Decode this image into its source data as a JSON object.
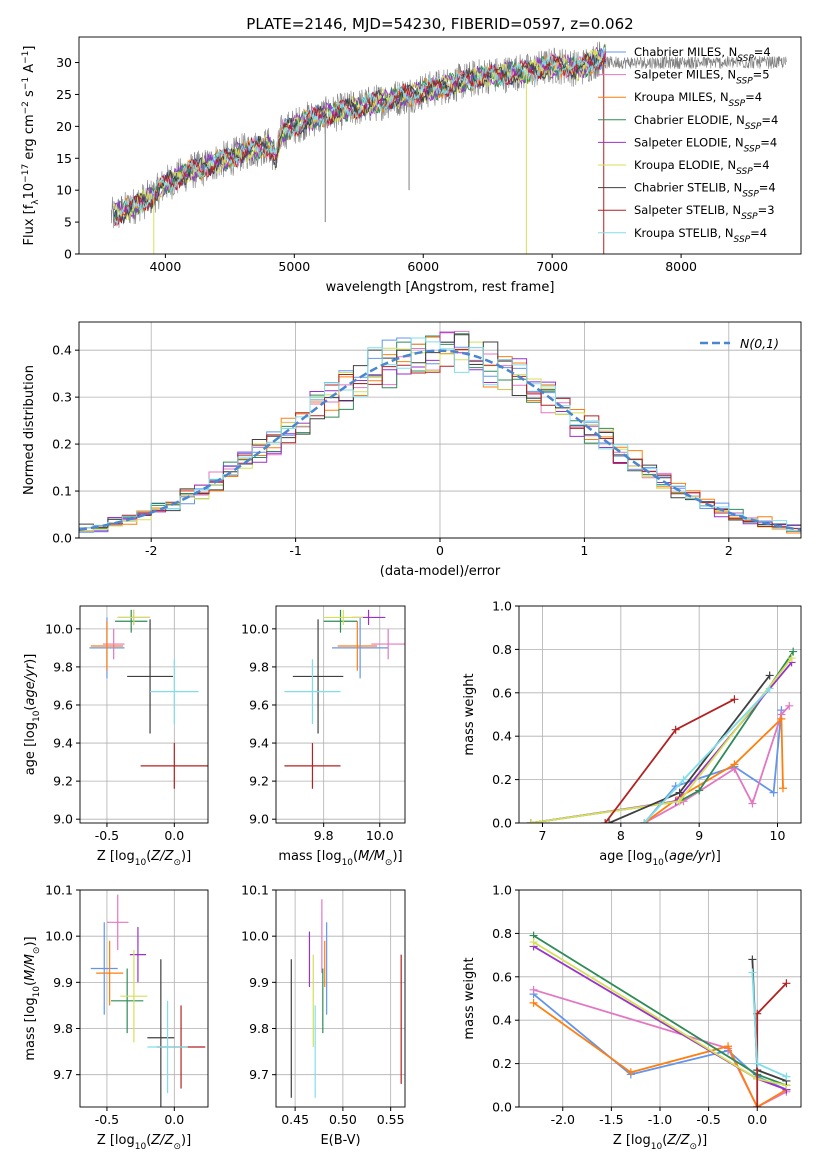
{
  "figure_title": "PLATE=2146, MJD=54230, FIBERID=0597, z=0.062",
  "models": [
    {
      "label": "Chabrier MILES, N_SSP=4",
      "lib": "MILES",
      "imf": "Chabrier",
      "nssp": "4",
      "color": "#6495ed"
    },
    {
      "label": "Salpeter MILES, N_SSP=5",
      "lib": "MILES",
      "imf": "Salpeter",
      "nssp": "5",
      "color": "#e377c2"
    },
    {
      "label": "Kroupa MILES, N_SSP=4",
      "lib": "MILES",
      "imf": "Kroupa",
      "nssp": "4",
      "color": "#ff7f0e"
    },
    {
      "label": "Chabrier ELODIE, N_SSP=4",
      "lib": "ELODIE",
      "imf": "Chabrier",
      "nssp": "4",
      "color": "#2e8b57"
    },
    {
      "label": "Salpeter ELODIE, N_SSP=4",
      "lib": "ELODIE",
      "imf": "Salpeter",
      "nssp": "4",
      "color": "#9932cc"
    },
    {
      "label": "Kroupa ELODIE, N_SSP=4",
      "lib": "ELODIE",
      "imf": "Kroupa",
      "nssp": "4",
      "color": "#d4e157"
    },
    {
      "label": "Chabrier STELIB, N_SSP=4",
      "lib": "STELIB",
      "imf": "Chabrier",
      "nssp": "4",
      "color": "#404040"
    },
    {
      "label": "Salpeter STELIB, N_SSP=3",
      "lib": "STELIB",
      "imf": "Salpeter",
      "nssp": "3",
      "color": "#b22222"
    },
    {
      "label": "Kroupa STELIB, N_SSP=4",
      "lib": "STELIB",
      "imf": "Kroupa",
      "nssp": "4",
      "color": "#80deea"
    }
  ],
  "chart_data": [
    {
      "id": "spectrum",
      "type": "line",
      "title": "PLATE=2146, MJD=54230, FIBERID=0597, z=0.062",
      "xlabel": "wavelength [Angstrom, rest frame]",
      "ylabel": "Flux [f_λ 10^-17 erg cm^-2 s^-1 A^-1]",
      "xlim": [
        3330,
        8930
      ],
      "ylim": [
        0,
        34
      ],
      "xticks": [
        4000,
        5000,
        6000,
        7000,
        8000
      ],
      "yticks": [
        0,
        5,
        10,
        15,
        20,
        25,
        30
      ],
      "grid": false,
      "legend": "right",
      "continuum_nodes": {
        "x": [
          3600,
          3700,
          3800,
          3900,
          4000,
          4100,
          4200,
          4300,
          4400,
          4500,
          4600,
          4700,
          4800,
          4860,
          4900,
          5000,
          5100,
          5200,
          5300,
          5400,
          5500,
          5600,
          5700,
          5800,
          5900,
          6000,
          6100,
          6200,
          6300,
          6400,
          6500,
          6600,
          6700,
          6800,
          6900,
          7000,
          7100,
          7200,
          7300,
          7400
        ],
        "y": [
          6,
          7,
          8,
          9,
          11,
          12,
          13,
          13.5,
          14.5,
          15,
          16,
          16.5,
          17,
          15,
          19,
          20,
          21,
          21.5,
          22,
          22.5,
          23,
          23.5,
          24,
          24.5,
          25,
          25.5,
          26,
          26.5,
          27,
          27.5,
          28,
          28,
          28.5,
          28.5,
          29,
          29.5,
          29.5,
          29,
          30,
          31
        ]
      },
      "spikes": [
        {
          "x": 3910,
          "y": -1
        },
        {
          "x": 5240,
          "y": 5
        },
        {
          "x": 5890,
          "y": 10
        },
        {
          "x": 6800,
          "y": -1
        },
        {
          "x": 7400,
          "y": -1
        }
      ]
    },
    {
      "id": "residuals",
      "type": "line",
      "xlabel": "(data-model)/error",
      "ylabel": "Normed distribution",
      "xlim": [
        -2.5,
        2.5
      ],
      "ylim": [
        0,
        0.46
      ],
      "xticks": [
        -2,
        -1,
        0,
        1,
        2
      ],
      "yticks": [
        0,
        0.1,
        0.2,
        0.3,
        0.4
      ],
      "grid": true,
      "legend": "top-right",
      "legend_label": "N(0,1)",
      "reference": {
        "name": "N(0,1)",
        "mean": 0,
        "sigma": 1,
        "color": "#4a86d0"
      },
      "bin_width": 0.1
    },
    {
      "id": "age_vs_Z",
      "type": "scatter",
      "xlabel": "Z [log10(Z/Z_sun)]",
      "ylabel": "age [log10(age/yr)]",
      "xlim": [
        -0.7,
        0.25
      ],
      "ylim": [
        8.98,
        10.12
      ],
      "xticks": [
        -0.5,
        0.0
      ],
      "yticks": [
        9.0,
        9.2,
        9.4,
        9.6,
        9.8,
        10.0
      ],
      "grid": true,
      "points": [
        {
          "model": 0,
          "x": -0.5,
          "xerr": 0.13,
          "y": 9.9,
          "yerr": 0.16
        },
        {
          "model": 1,
          "x": -0.45,
          "xerr": 0.08,
          "y": 9.92,
          "yerr": 0.08
        },
        {
          "model": 2,
          "x": -0.5,
          "xerr": 0.12,
          "y": 9.91,
          "yerr": 0.13
        },
        {
          "model": 3,
          "x": -0.32,
          "xerr": 0.12,
          "y": 10.04,
          "yerr": 0.06
        },
        {
          "model": 4,
          "x": -0.3,
          "xerr": 0.12,
          "y": 10.06,
          "yerr": 0.04
        },
        {
          "model": 5,
          "x": -0.3,
          "xerr": 0.12,
          "y": 10.06,
          "yerr": 0.04
        },
        {
          "model": 6,
          "x": -0.18,
          "xerr": 0.17,
          "y": 9.75,
          "yerr": 0.3
        },
        {
          "model": 7,
          "x": 0.0,
          "xerr": 0.25,
          "y": 9.28,
          "yerr": 0.12
        },
        {
          "model": 8,
          "x": 0.0,
          "xerr": 0.18,
          "y": 9.67,
          "yerr": 0.17
        }
      ]
    },
    {
      "id": "age_vs_mass",
      "type": "scatter",
      "xlabel": "mass [log10(M/M_sun)]",
      "ylabel": "",
      "xlim": [
        9.63,
        10.09
      ],
      "ylim": [
        8.98,
        10.12
      ],
      "xticks": [
        9.8,
        10.0
      ],
      "yticks": [
        9.0,
        9.2,
        9.4,
        9.6,
        9.8,
        10.0
      ],
      "grid": true,
      "points": [
        {
          "model": 0,
          "x": 9.93,
          "xerr": 0.1,
          "y": 9.9,
          "yerr": 0.16
        },
        {
          "model": 1,
          "x": 10.03,
          "xerr": 0.06,
          "y": 9.92,
          "yerr": 0.08
        },
        {
          "model": 2,
          "x": 9.92,
          "xerr": 0.07,
          "y": 9.91,
          "yerr": 0.13
        },
        {
          "model": 3,
          "x": 9.86,
          "xerr": 0.06,
          "y": 10.04,
          "yerr": 0.06
        },
        {
          "model": 4,
          "x": 9.96,
          "xerr": 0.06,
          "y": 10.06,
          "yerr": 0.04
        },
        {
          "model": 5,
          "x": 9.87,
          "xerr": 0.07,
          "y": 10.06,
          "yerr": 0.04
        },
        {
          "model": 6,
          "x": 9.78,
          "xerr": 0.09,
          "y": 9.75,
          "yerr": 0.3
        },
        {
          "model": 7,
          "x": 9.76,
          "xerr": 0.1,
          "y": 9.28,
          "yerr": 0.12
        },
        {
          "model": 8,
          "x": 9.76,
          "xerr": 0.1,
          "y": 9.67,
          "yerr": 0.17
        }
      ]
    },
    {
      "id": "weight_vs_age",
      "type": "line",
      "xlabel": "age [log10(age/yr)]",
      "ylabel": "mass weight",
      "xlim": [
        6.7,
        10.3
      ],
      "ylim": [
        0,
        1.0
      ],
      "xticks": [
        7,
        8,
        9,
        10
      ],
      "yticks": [
        0,
        0.2,
        0.4,
        0.6,
        0.8,
        1.0
      ],
      "grid": true,
      "series": [
        {
          "model": 0,
          "x": [
            8.3,
            8.7,
            9.45,
            9.95,
            10.05
          ],
          "y": [
            0.0,
            0.17,
            0.26,
            0.14,
            0.52
          ]
        },
        {
          "model": 1,
          "x": [
            8.3,
            8.8,
            9.45,
            9.68,
            10.05,
            10.15
          ],
          "y": [
            0.0,
            0.1,
            0.25,
            0.09,
            0.5,
            0.54
          ]
        },
        {
          "model": 2,
          "x": [
            8.3,
            8.75,
            9.45,
            10.05,
            10.07
          ],
          "y": [
            0.0,
            0.12,
            0.27,
            0.48,
            0.16
          ]
        },
        {
          "model": 3,
          "x": [
            6.85,
            8.75,
            9.0,
            10.2
          ],
          "y": [
            0.0,
            0.1,
            0.15,
            0.79
          ]
        },
        {
          "model": 4,
          "x": [
            6.85,
            8.7,
            10.18
          ],
          "y": [
            0.0,
            0.1,
            0.74
          ]
        },
        {
          "model": 5,
          "x": [
            6.85,
            8.75,
            10.18
          ],
          "y": [
            0.0,
            0.1,
            0.76
          ]
        },
        {
          "model": 6,
          "x": [
            7.85,
            8.75,
            9.9
          ],
          "y": [
            0.0,
            0.14,
            0.68
          ]
        },
        {
          "model": 7,
          "x": [
            7.8,
            8.7,
            9.45
          ],
          "y": [
            0.0,
            0.43,
            0.57
          ]
        },
        {
          "model": 8,
          "x": [
            8.3,
            8.8,
            9.9
          ],
          "y": [
            0.0,
            0.2,
            0.62
          ]
        }
      ]
    },
    {
      "id": "mass_vs_Z",
      "type": "scatter",
      "xlabel": "Z [log10(Z/Z_sun)]",
      "ylabel": "mass [log10(M/M_sun)]",
      "xlim": [
        -0.7,
        0.25
      ],
      "ylim": [
        9.63,
        10.1
      ],
      "xticks": [
        -0.5,
        0.0
      ],
      "yticks": [
        9.7,
        9.8,
        9.9,
        10.0,
        10.1
      ],
      "grid": true,
      "points": [
        {
          "model": 0,
          "x": -0.52,
          "xerr": 0.1,
          "y": 9.93,
          "yerr": 0.1
        },
        {
          "model": 1,
          "x": -0.42,
          "xerr": 0.08,
          "y": 10.03,
          "yerr": 0.06
        },
        {
          "model": 2,
          "x": -0.48,
          "xerr": 0.1,
          "y": 9.92,
          "yerr": 0.07
        },
        {
          "model": 3,
          "x": -0.35,
          "xerr": 0.12,
          "y": 9.86,
          "yerr": 0.07
        },
        {
          "model": 4,
          "x": -0.27,
          "xerr": 0.06,
          "y": 9.96,
          "yerr": 0.06
        },
        {
          "model": 5,
          "x": -0.3,
          "xerr": 0.1,
          "y": 9.87,
          "yerr": 0.1
        },
        {
          "model": 6,
          "x": -0.1,
          "xerr": 0.1,
          "y": 9.78,
          "yerr": 0.17
        },
        {
          "model": 7,
          "x": 0.05,
          "xerr": 0.18,
          "y": 9.76,
          "yerr": 0.09
        },
        {
          "model": 8,
          "x": -0.05,
          "xerr": 0.15,
          "y": 9.76,
          "yerr": 0.1
        }
      ]
    },
    {
      "id": "mass_vs_ebv",
      "type": "scatter",
      "xlabel": "E(B-V)",
      "ylabel": "",
      "xlim": [
        0.43,
        0.565
      ],
      "ylim": [
        9.63,
        10.1
      ],
      "xticks": [
        0.45,
        0.5,
        0.55
      ],
      "yticks": [
        9.7,
        9.8,
        9.9,
        10.0,
        10.1
      ],
      "grid": true,
      "points": [
        {
          "model": 0,
          "x": 0.483,
          "y": 9.93,
          "yerr": 0.1
        },
        {
          "model": 1,
          "x": 0.478,
          "y": 10.0,
          "yerr": 0.08
        },
        {
          "model": 2,
          "x": 0.481,
          "y": 9.94,
          "yerr": 0.05
        },
        {
          "model": 3,
          "x": 0.479,
          "y": 9.86,
          "yerr": 0.07
        },
        {
          "model": 4,
          "x": 0.465,
          "y": 9.95,
          "yerr": 0.06
        },
        {
          "model": 5,
          "x": 0.469,
          "y": 9.86,
          "yerr": 0.1
        },
        {
          "model": 6,
          "x": 0.446,
          "y": 9.8,
          "yerr": 0.15
        },
        {
          "model": 7,
          "x": 0.561,
          "y": 9.82,
          "yerr": 0.14
        },
        {
          "model": 8,
          "x": 0.471,
          "y": 9.75,
          "yerr": 0.1
        }
      ]
    },
    {
      "id": "weight_vs_Z",
      "type": "line",
      "xlabel": "Z [log10(Z/Z_sun)]",
      "ylabel": "mass weight",
      "xlim": [
        -2.45,
        0.45
      ],
      "ylim": [
        0,
        1.0
      ],
      "xticks": [
        -2.0,
        -1.5,
        -1.0,
        -0.5,
        0.0
      ],
      "yticks": [
        0,
        0.2,
        0.4,
        0.6,
        0.8,
        1.0
      ],
      "grid": true,
      "series": [
        {
          "model": 0,
          "x": [
            -2.3,
            -1.3,
            -0.3,
            0.0,
            0.3
          ],
          "y": [
            0.52,
            0.15,
            0.26,
            0.14,
            0.08
          ]
        },
        {
          "model": 1,
          "x": [
            -2.3,
            -0.3,
            0.0,
            0.3
          ],
          "y": [
            0.54,
            0.27,
            0.0,
            0.07
          ]
        },
        {
          "model": 2,
          "x": [
            -2.3,
            -1.3,
            -0.3,
            0.0,
            0.3
          ],
          "y": [
            0.48,
            0.16,
            0.28,
            0.0,
            0.08
          ]
        },
        {
          "model": 3,
          "x": [
            -2.3,
            0.0,
            0.3
          ],
          "y": [
            0.79,
            0.15,
            0.1
          ]
        },
        {
          "model": 4,
          "x": [
            -2.3,
            0.0,
            0.3
          ],
          "y": [
            0.74,
            0.13,
            0.08
          ]
        },
        {
          "model": 5,
          "x": [
            -2.3,
            0.0,
            0.3
          ],
          "y": [
            0.76,
            0.13,
            0.1
          ]
        },
        {
          "model": 6,
          "x": [
            -0.05,
            0.0,
            0.3
          ],
          "y": [
            0.68,
            0.17,
            0.12
          ]
        },
        {
          "model": 7,
          "x": [
            0.0,
            0.0,
            0.3
          ],
          "y": [
            0.0,
            0.43,
            0.57
          ]
        },
        {
          "model": 8,
          "x": [
            -0.05,
            0.0,
            0.3
          ],
          "y": [
            0.62,
            0.2,
            0.14
          ]
        }
      ]
    }
  ]
}
